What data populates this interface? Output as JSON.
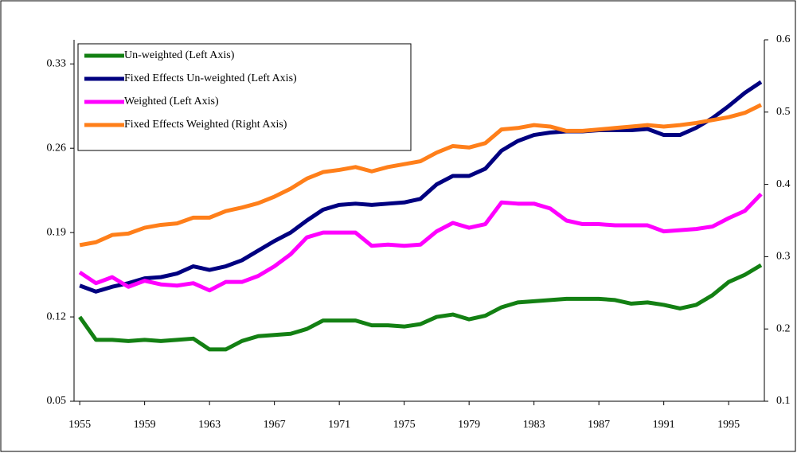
{
  "chart_data": {
    "type": "line",
    "x": [
      1955,
      1956,
      1957,
      1958,
      1959,
      1960,
      1961,
      1962,
      1963,
      1964,
      1965,
      1966,
      1967,
      1968,
      1969,
      1970,
      1971,
      1972,
      1973,
      1974,
      1975,
      1976,
      1977,
      1978,
      1979,
      1980,
      1981,
      1982,
      1983,
      1984,
      1985,
      1986,
      1987,
      1988,
      1989,
      1990,
      1991,
      1992,
      1993,
      1994,
      1995,
      1996,
      1997
    ],
    "xlim": [
      1954.65,
      1997.2
    ],
    "xticks": [
      1955,
      1959,
      1963,
      1967,
      1971,
      1975,
      1979,
      1983,
      1987,
      1991,
      1995
    ],
    "ylim": [
      0.05,
      0.35
    ],
    "yticks": [
      0.05,
      0.12,
      0.19,
      0.26,
      0.33
    ],
    "y2lim": [
      0.1,
      0.6
    ],
    "y2ticks": [
      0.1,
      0.2,
      0.3,
      0.4,
      0.5,
      0.6
    ],
    "legend": "upper left",
    "series": [
      {
        "name": "Un-weighted (Left Axis)",
        "color": "#138013",
        "values": [
          0.12,
          0.101,
          0.101,
          0.1,
          0.101,
          0.1,
          0.101,
          0.102,
          0.093,
          0.093,
          0.1,
          0.104,
          0.105,
          0.106,
          0.11,
          0.117,
          0.117,
          0.117,
          0.113,
          0.113,
          0.112,
          0.114,
          0.12,
          0.122,
          0.118,
          0.121,
          0.128,
          0.132,
          0.133,
          0.134,
          0.135,
          0.135,
          0.135,
          0.134,
          0.131,
          0.132,
          0.13,
          0.127,
          0.13,
          0.138,
          0.149,
          0.155,
          0.163
        ]
      },
      {
        "name": "Fixed Effects Un-weighted (Left Axis)",
        "color": "#000080",
        "values": [
          0.146,
          0.141,
          0.145,
          0.148,
          0.152,
          0.153,
          0.156,
          0.162,
          0.159,
          0.162,
          0.167,
          0.175,
          0.183,
          0.19,
          0.2,
          0.209,
          0.213,
          0.214,
          0.213,
          0.214,
          0.215,
          0.218,
          0.23,
          0.237,
          0.237,
          0.243,
          0.258,
          0.266,
          0.271,
          0.273,
          0.274,
          0.274,
          0.275,
          0.275,
          0.275,
          0.276,
          0.271,
          0.271,
          0.277,
          0.285,
          0.295,
          0.306,
          0.315
        ]
      },
      {
        "name": "Weighted (Left Axis)",
        "color": "#ff00ff",
        "values": [
          0.157,
          0.148,
          0.153,
          0.145,
          0.15,
          0.147,
          0.146,
          0.148,
          0.142,
          0.149,
          0.149,
          0.154,
          0.162,
          0.172,
          0.186,
          0.19,
          0.19,
          0.19,
          0.179,
          0.18,
          0.179,
          0.18,
          0.191,
          0.198,
          0.194,
          0.197,
          0.215,
          0.214,
          0.214,
          0.21,
          0.2,
          0.197,
          0.197,
          0.196,
          0.196,
          0.196,
          0.191,
          0.192,
          0.193,
          0.195,
          0.202,
          0.208,
          0.222
        ]
      },
      {
        "name": "Fixed Effects Weighted (Right Axis)",
        "color": "#ff7f1a",
        "axis": "y2",
        "values": [
          0.316,
          0.32,
          0.33,
          0.332,
          0.34,
          0.344,
          0.346,
          0.354,
          0.354,
          0.363,
          0.368,
          0.374,
          0.383,
          0.394,
          0.408,
          0.417,
          0.42,
          0.424,
          0.418,
          0.424,
          0.428,
          0.432,
          0.444,
          0.453,
          0.451,
          0.457,
          0.476,
          0.478,
          0.482,
          0.48,
          0.474,
          0.474,
          0.476,
          0.478,
          0.48,
          0.482,
          0.48,
          0.482,
          0.485,
          0.489,
          0.493,
          0.499,
          0.51
        ]
      }
    ]
  }
}
